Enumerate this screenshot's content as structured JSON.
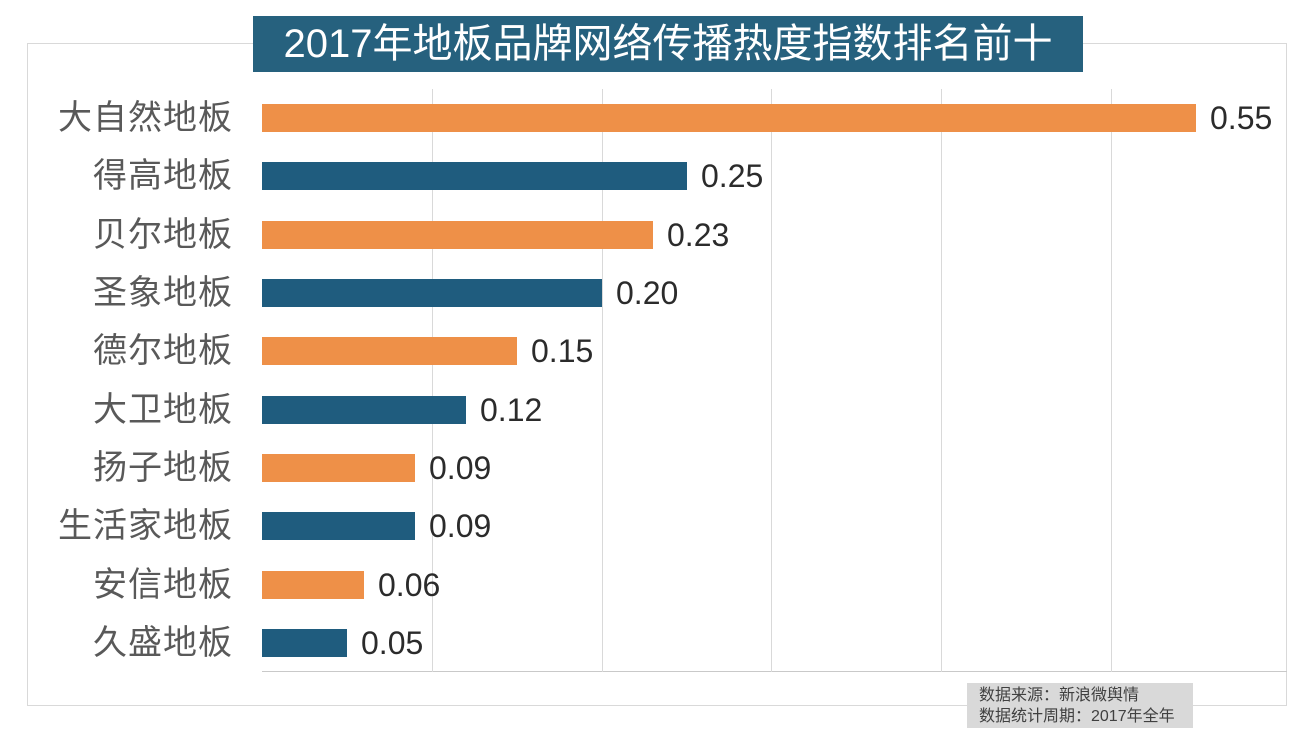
{
  "chart_data": {
    "type": "bar",
    "orientation": "horizontal",
    "title": "2017年地板品牌网络传播热度指数排名前十",
    "categories": [
      "大自然地板",
      "得高地板",
      "贝尔地板",
      "圣象地板",
      "德尔地板",
      "大卫地板",
      "扬子地板",
      "生活家地板",
      "安信地板",
      "久盛地板"
    ],
    "values": [
      0.55,
      0.25,
      0.23,
      0.2,
      0.15,
      0.12,
      0.09,
      0.09,
      0.06,
      0.05
    ],
    "value_labels": [
      "0.55",
      "0.25",
      "0.23",
      "0.20",
      "0.15",
      "0.12",
      "0.09",
      "0.09",
      "0.06",
      "0.05"
    ],
    "bar_colors": [
      "#ee9048",
      "#1f5c7e",
      "#ee9048",
      "#1f5c7e",
      "#ee9048",
      "#1f5c7e",
      "#ee9048",
      "#1f5c7e",
      "#ee9048",
      "#1f5c7e"
    ],
    "xlim": [
      0,
      0.6
    ],
    "gridline_ticks": [
      0.1,
      0.2,
      0.3,
      0.4,
      0.5
    ],
    "grid": "vertical-gridlines-only",
    "axis_tick_labels_shown": false,
    "legend": "none",
    "ylabel": "",
    "xlabel": ""
  },
  "colors": {
    "bar_orange": "#ee9048",
    "bar_teal": "#1f5c7e",
    "title_bg": "#26617e",
    "title_text": "#ffffff",
    "category_text": "#595959",
    "value_text": "#2b2b2b",
    "gridline": "#d9d9d9",
    "frame_border": "#d9d9d9",
    "source_bg": "#d9d9d9",
    "source_text": "#404040"
  },
  "source": {
    "line1": "数据来源：新浪微舆情",
    "line2": "数据统计周期：2017年全年"
  }
}
